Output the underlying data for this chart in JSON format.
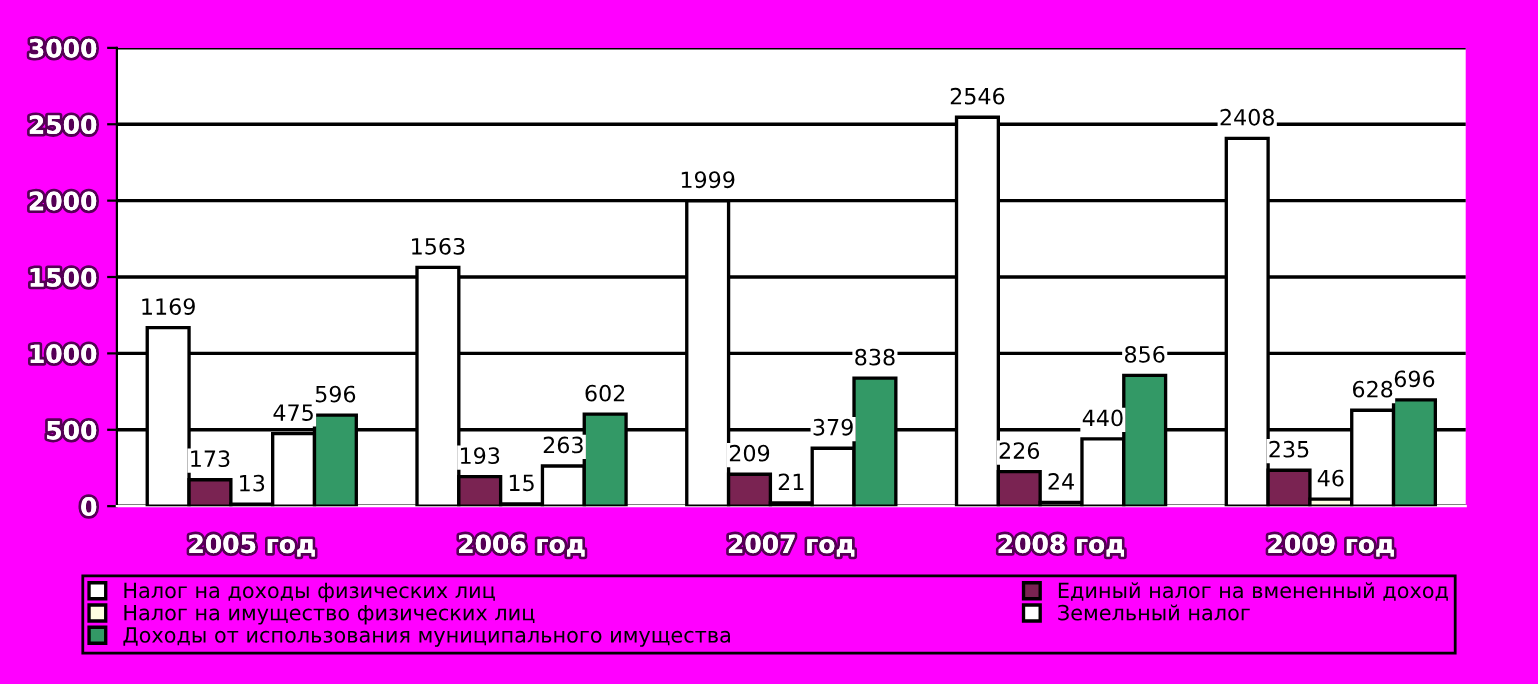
{
  "chart_data": {
    "type": "bar",
    "categories": [
      "2005 год",
      "2006 год",
      "2007 год",
      "2008 год",
      "2009 год"
    ],
    "series": [
      {
        "name": "Налог на доходы физических лиц",
        "color": "#ffffff",
        "values": [
          1169,
          1563,
          1999,
          2546,
          2408
        ]
      },
      {
        "name": "Единый налог на вмененный доход",
        "color": "#7a2352",
        "values": [
          173,
          193,
          209,
          226,
          235
        ]
      },
      {
        "name": "Налог на имущество физических лиц",
        "color": "#ffffe0",
        "values": [
          13,
          15,
          21,
          24,
          46
        ]
      },
      {
        "name": "Земельный налог",
        "color": "#ffffff",
        "values": [
          475,
          263,
          379,
          440,
          628
        ]
      },
      {
        "name": "Доходы от использования муниципального имущества",
        "color": "#339966",
        "values": [
          596,
          602,
          838,
          856,
          696
        ]
      }
    ],
    "ylim": [
      0,
      3000
    ],
    "yticks": [
      0,
      500,
      1000,
      1500,
      2000,
      2500,
      3000
    ],
    "grid": "y",
    "legend": "bottom",
    "data_labels": true
  }
}
